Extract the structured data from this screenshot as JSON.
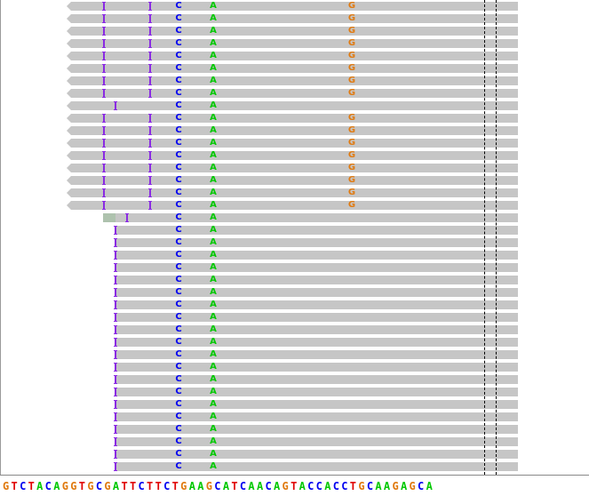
{
  "colors": {
    "A": "#00c800",
    "C": "#0000f0",
    "G": "#e07a10",
    "T": "#e00000",
    "read": "#c6c6c6",
    "insertion": "#8a2be2"
  },
  "reference": {
    "sequence": "GTCTACAGGTGCGATTCTTCTGAAGCATCAACAGTACCACCTGCAAGAGCA"
  },
  "reads": [
    {
      "mismatches": [
        "C",
        "A",
        "G"
      ]
    },
    {
      "mismatches": [
        "C",
        "A",
        "G"
      ]
    },
    {
      "mismatches": [
        "C",
        "A",
        "G"
      ]
    },
    {
      "mismatches": [
        "C",
        "A",
        "G"
      ]
    },
    {
      "mismatches": [
        "C",
        "A",
        "G"
      ]
    },
    {
      "mismatches": [
        "C",
        "A",
        "G"
      ]
    },
    {
      "mismatches": [
        "C",
        "A",
        "G"
      ]
    },
    {
      "mismatches": [
        "C",
        "A",
        "G"
      ]
    },
    {
      "mismatches": [
        "C",
        "A"
      ]
    },
    {
      "mismatches": [
        "C",
        "A",
        "G"
      ]
    },
    {
      "mismatches": [
        "C",
        "A",
        "G"
      ]
    },
    {
      "mismatches": [
        "C",
        "A",
        "G"
      ]
    },
    {
      "mismatches": [
        "C",
        "A",
        "G"
      ]
    },
    {
      "mismatches": [
        "C",
        "A",
        "G"
      ]
    },
    {
      "mismatches": [
        "C",
        "A",
        "G"
      ]
    },
    {
      "mismatches": [
        "C",
        "A",
        "G"
      ]
    },
    {
      "mismatches": [
        "C",
        "A",
        "G"
      ]
    },
    {
      "mismatches": [
        "C",
        "A"
      ]
    },
    {
      "mismatches": [
        "C",
        "A"
      ]
    },
    {
      "mismatches": [
        "C",
        "A"
      ]
    },
    {
      "mismatches": [
        "C",
        "A"
      ]
    },
    {
      "mismatches": [
        "C",
        "A"
      ]
    },
    {
      "mismatches": [
        "C",
        "A"
      ]
    },
    {
      "mismatches": [
        "C",
        "A"
      ]
    },
    {
      "mismatches": [
        "C",
        "A"
      ]
    },
    {
      "mismatches": [
        "C",
        "A"
      ]
    },
    {
      "mismatches": [
        "C",
        "A"
      ]
    },
    {
      "mismatches": [
        "C",
        "A"
      ]
    },
    {
      "mismatches": [
        "C",
        "A"
      ]
    },
    {
      "mismatches": [
        "C",
        "A"
      ]
    },
    {
      "mismatches": [
        "C",
        "A"
      ]
    },
    {
      "mismatches": [
        "C",
        "A"
      ]
    },
    {
      "mismatches": [
        "C",
        "A"
      ]
    },
    {
      "mismatches": [
        "C",
        "A"
      ]
    },
    {
      "mismatches": [
        "C",
        "A"
      ]
    },
    {
      "mismatches": [
        "C",
        "A"
      ]
    },
    {
      "mismatches": [
        "C",
        "A"
      ]
    },
    {
      "mismatches": [
        "C",
        "A"
      ]
    }
  ]
}
